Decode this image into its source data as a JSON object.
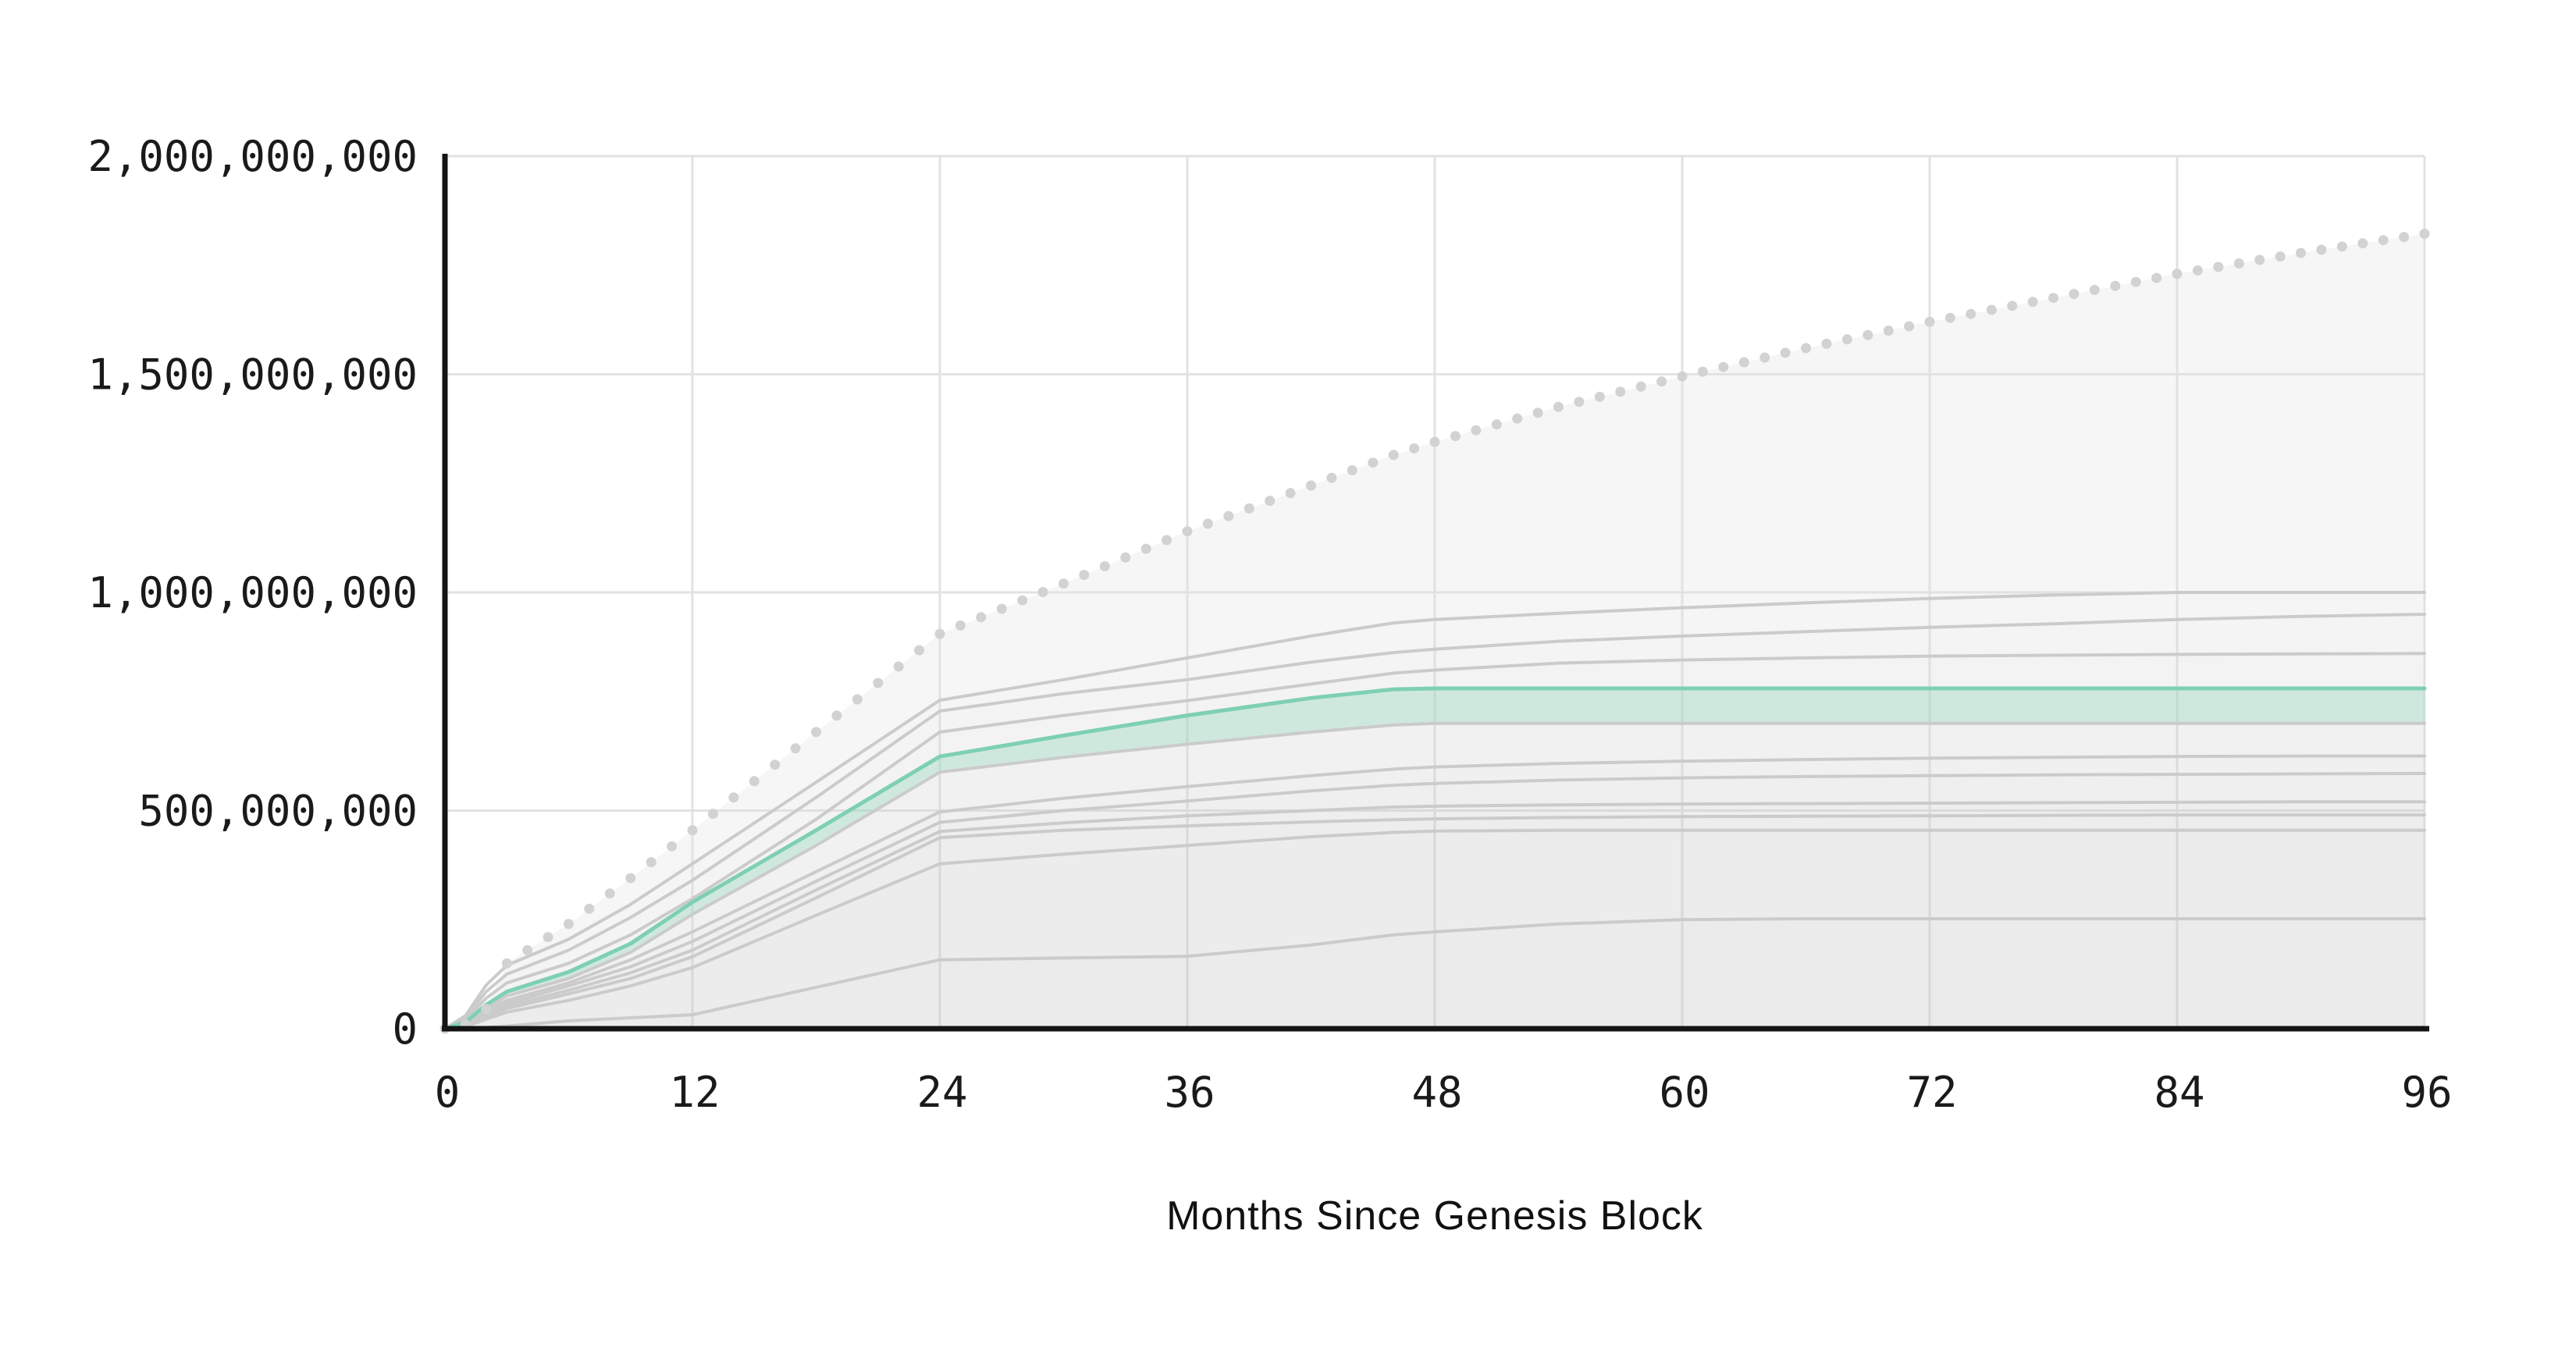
{
  "chart_data": {
    "type": "line",
    "title": "",
    "xlabel": "Months Since Genesis Block",
    "ylabel": "",
    "xlim": [
      0,
      96
    ],
    "ylim": [
      0,
      2000000000
    ],
    "grid": true,
    "legend": "none",
    "x_ticks": [
      0,
      12,
      24,
      36,
      48,
      60,
      72,
      84,
      96
    ],
    "y_ticks": [
      {
        "value": 2000000000,
        "label": "2,000,000,000"
      },
      {
        "value": 1500000000,
        "label": "1,500,000,000"
      },
      {
        "value": 1000000000,
        "label": "1,000,000,000"
      },
      {
        "value": 500000000,
        "label": "500,000,000"
      },
      {
        "value": 0,
        "label": "0"
      }
    ],
    "months": [
      0,
      1,
      2,
      3,
      6,
      9,
      12,
      18,
      24,
      30,
      36,
      42,
      46,
      48,
      54,
      60,
      66,
      72,
      78,
      84,
      90,
      96
    ],
    "series": [
      {
        "name": "dotted-max-supply-curve",
        "style": "dotted",
        "values": [
          0,
          10000000,
          45000000,
          150000000,
          240000000,
          345000000,
          455000000,
          680000000,
          905000000,
          1020000000,
          1140000000,
          1245000000,
          1315000000,
          1345000000,
          1425000000,
          1495000000,
          1560000000,
          1620000000,
          1675000000,
          1730000000,
          1778000000,
          1822000000
        ]
      },
      {
        "name": "gray-supply-curve-1",
        "style": "solid",
        "values": [
          0,
          30000000,
          100000000,
          145000000,
          205000000,
          285000000,
          378000000,
          565000000,
          753000000,
          800000000,
          850000000,
          900000000,
          930000000,
          938000000,
          952000000,
          965000000,
          976000000,
          986000000,
          994000000,
          1000000000,
          1000000000,
          1000000000
        ]
      },
      {
        "name": "gray-supply-curve-2",
        "style": "solid",
        "values": [
          0,
          25000000,
          85000000,
          125000000,
          180000000,
          255000000,
          340000000,
          530000000,
          728000000,
          768000000,
          800000000,
          840000000,
          862000000,
          870000000,
          888000000,
          900000000,
          910000000,
          920000000,
          928000000,
          938000000,
          945000000,
          950000000
        ]
      },
      {
        "name": "gray-supply-curve-3",
        "style": "solid",
        "values": [
          0,
          20000000,
          70000000,
          105000000,
          150000000,
          215000000,
          298000000,
          480000000,
          680000000,
          718000000,
          752000000,
          790000000,
          815000000,
          822000000,
          838000000,
          845000000,
          850000000,
          854000000,
          856000000,
          858000000,
          859000000,
          860000000
        ]
      },
      {
        "name": "highlighted-supply-curve",
        "style": "highlight",
        "band_fill_to": "gray-supply-curve-4",
        "values": [
          0,
          15000000,
          55000000,
          85000000,
          130000000,
          195000000,
          290000000,
          455000000,
          624000000,
          672000000,
          718000000,
          758000000,
          778000000,
          780000000,
          780000000,
          780000000,
          780000000,
          780000000,
          780000000,
          780000000,
          780000000,
          780000000
        ]
      },
      {
        "name": "gray-supply-curve-4",
        "style": "solid",
        "values": [
          0,
          12000000,
          48000000,
          75000000,
          115000000,
          175000000,
          262000000,
          420000000,
          588000000,
          622000000,
          652000000,
          680000000,
          696000000,
          700000000,
          700000000,
          700000000,
          700000000,
          700000000,
          700000000,
          700000000,
          700000000,
          700000000
        ]
      },
      {
        "name": "gray-supply-curve-5",
        "style": "solid",
        "values": [
          0,
          10000000,
          42000000,
          65000000,
          105000000,
          158000000,
          222000000,
          360000000,
          497000000,
          528000000,
          555000000,
          580000000,
          595000000,
          600000000,
          608000000,
          613000000,
          617000000,
          620000000,
          622000000,
          624000000,
          625000000,
          625000000
        ]
      },
      {
        "name": "gray-supply-curve-6",
        "style": "solid",
        "values": [
          0,
          9000000,
          38000000,
          58000000,
          98000000,
          142000000,
          200000000,
          338000000,
          473000000,
          500000000,
          522000000,
          545000000,
          558000000,
          562000000,
          570000000,
          575000000,
          578000000,
          580000000,
          582000000,
          583000000,
          584000000,
          585000000
        ]
      },
      {
        "name": "gray-supply-curve-7",
        "style": "solid",
        "values": [
          0,
          8000000,
          32000000,
          52000000,
          88000000,
          128000000,
          180000000,
          318000000,
          452000000,
          472000000,
          488000000,
          500000000,
          508000000,
          510000000,
          513000000,
          515000000,
          516000000,
          517000000,
          518000000,
          519000000,
          520000000,
          520000000
        ]
      },
      {
        "name": "gray-supply-curve-8",
        "style": "solid",
        "values": [
          0,
          7000000,
          28000000,
          46000000,
          80000000,
          115000000,
          165000000,
          300000000,
          438000000,
          455000000,
          465000000,
          474000000,
          479000000,
          481000000,
          484000000,
          486000000,
          487000000,
          488000000,
          489000000,
          490000000,
          490000000,
          490000000
        ]
      },
      {
        "name": "gray-supply-curve-9",
        "style": "solid",
        "values": [
          0,
          5000000,
          22000000,
          38000000,
          65000000,
          98000000,
          140000000,
          260000000,
          378000000,
          400000000,
          420000000,
          440000000,
          450000000,
          453000000,
          455000000,
          455000000,
          455000000,
          455000000,
          455000000,
          455000000,
          455000000,
          455000000
        ]
      },
      {
        "name": "gray-supply-curve-10",
        "style": "solid",
        "values": [
          0,
          1000000,
          3000000,
          6000000,
          18000000,
          25000000,
          32000000,
          95000000,
          158000000,
          162000000,
          166000000,
          192000000,
          215000000,
          222000000,
          240000000,
          250000000,
          252000000,
          252000000,
          252000000,
          252000000,
          252000000,
          252000000
        ]
      }
    ],
    "colors": {
      "background": "#ffffff",
      "grid_line": "#e2e2e2",
      "axis_line": "#141414",
      "tick_text": "#1a1a1a",
      "gray_line": "#cbcbcb",
      "dot_fill": "#d2d2d2",
      "area_under_dotted": "#f7f6f6",
      "area_layer": "rgba(110,110,110,0.006)",
      "highlight_line": "#7ed0b2",
      "highlight_band": "rgba(141,214,186,0.35)"
    }
  }
}
